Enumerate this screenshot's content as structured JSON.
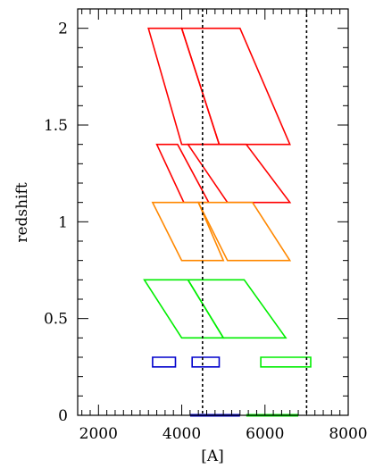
{
  "chart_data": {
    "type": "line",
    "title": "",
    "xlabel": "[A]",
    "ylabel": "redshift",
    "xlim": [
      1500,
      8000
    ],
    "ylim": [
      0,
      2.1
    ],
    "x_ticks": [
      "2000",
      "4000",
      "6000",
      "8000"
    ],
    "y_ticks": [
      "0",
      "0.5",
      "1",
      "1.5",
      "2"
    ],
    "grid": false,
    "legend": "none",
    "reference_lines_x": [
      4500,
      7000
    ],
    "series": [
      {
        "color": "#ff0000",
        "polygon": [
          [
            3200,
            2.0
          ],
          [
            4000,
            2.0
          ],
          [
            4900,
            1.4
          ],
          [
            4000,
            1.4
          ]
        ]
      },
      {
        "color": "#ff0000",
        "polygon": [
          [
            4000,
            2.0
          ],
          [
            5400,
            2.0
          ],
          [
            6600,
            1.4
          ],
          [
            4900,
            1.4
          ]
        ]
      },
      {
        "color": "#ff0000",
        "polygon": [
          [
            3400,
            1.4
          ],
          [
            3900,
            1.4
          ],
          [
            4650,
            1.1
          ],
          [
            4050,
            1.1
          ]
        ]
      },
      {
        "color": "#ff0000",
        "polygon": [
          [
            4150,
            1.4
          ],
          [
            5550,
            1.4
          ],
          [
            6600,
            1.1
          ],
          [
            5100,
            1.1
          ]
        ]
      },
      {
        "color": "#ff8800",
        "polygon": [
          [
            3300,
            1.1
          ],
          [
            4400,
            1.1
          ],
          [
            5000,
            0.8
          ],
          [
            4000,
            0.8
          ]
        ]
      },
      {
        "color": "#ff8800",
        "polygon": [
          [
            4400,
            1.1
          ],
          [
            5700,
            1.1
          ],
          [
            6600,
            0.8
          ],
          [
            5100,
            0.8
          ]
        ]
      },
      {
        "color": "#00ee00",
        "polygon": [
          [
            3100,
            0.7
          ],
          [
            4150,
            0.7
          ],
          [
            5000,
            0.4
          ],
          [
            4000,
            0.4
          ]
        ]
      },
      {
        "color": "#00ee00",
        "polygon": [
          [
            4150,
            0.7
          ],
          [
            5500,
            0.7
          ],
          [
            6500,
            0.4
          ],
          [
            5000,
            0.4
          ]
        ]
      },
      {
        "color": "#0000cc",
        "polygon": [
          [
            3300,
            0.3
          ],
          [
            3850,
            0.3
          ],
          [
            3850,
            0.25
          ],
          [
            3300,
            0.25
          ]
        ]
      },
      {
        "color": "#0000cc",
        "polygon": [
          [
            4250,
            0.3
          ],
          [
            4900,
            0.3
          ],
          [
            4900,
            0.25
          ],
          [
            4250,
            0.25
          ]
        ]
      },
      {
        "color": "#00ee00",
        "polygon": [
          [
            5900,
            0.3
          ],
          [
            7100,
            0.3
          ],
          [
            7100,
            0.25
          ],
          [
            5900,
            0.25
          ]
        ]
      },
      {
        "color": "#0000cc",
        "polygon": [
          [
            4200,
            0.0
          ],
          [
            5400,
            0.0
          ]
        ]
      },
      {
        "color": "#00ee00",
        "polygon": [
          [
            5550,
            0.0
          ],
          [
            6800,
            0.0
          ]
        ]
      }
    ]
  }
}
